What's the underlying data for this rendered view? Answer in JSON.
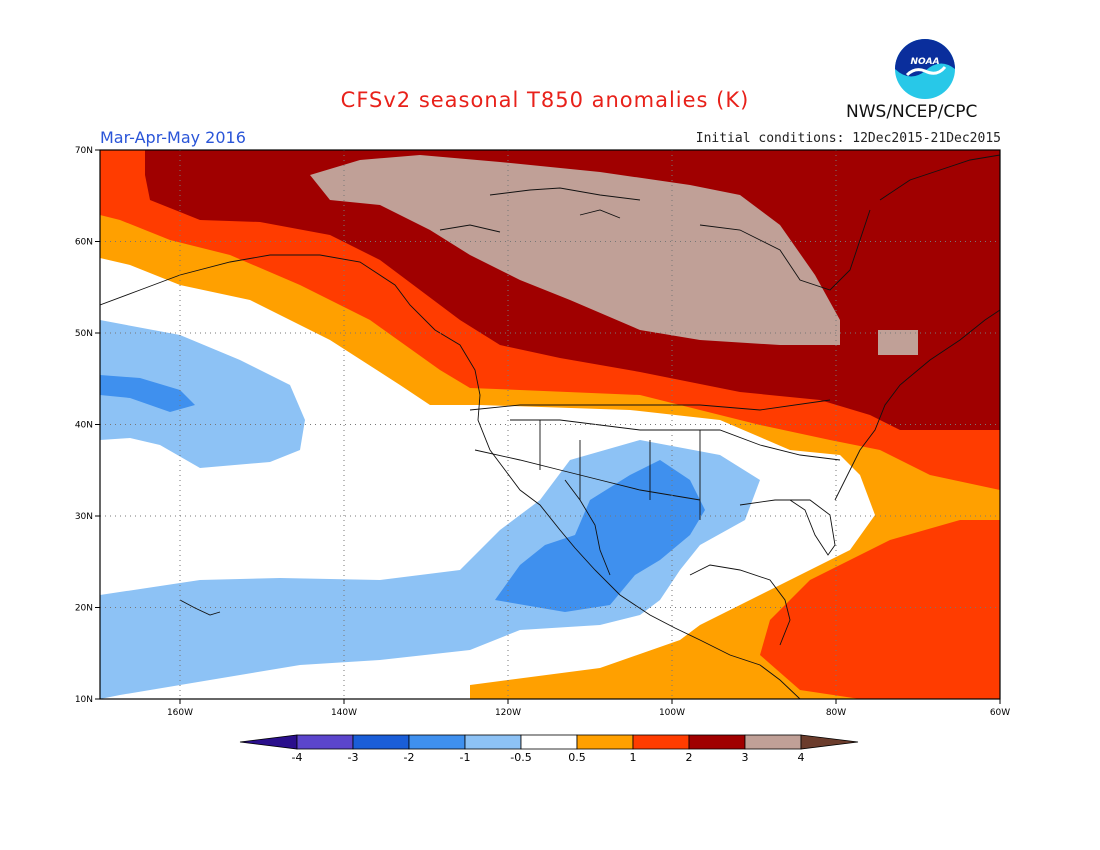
{
  "header": {
    "title": "CFSv2 seasonal T850 anomalies (K)",
    "period": "Mar-Apr-May 2016",
    "initial_conditions": "Initial conditions: 12Dec2015-21Dec2015",
    "agency": "NWS/NCEP/CPC",
    "logo_text": "NOAA"
  },
  "map": {
    "lat_labels": [
      "70N",
      "60N",
      "50N",
      "40N",
      "30N",
      "20N",
      "10N"
    ],
    "lon_labels": [
      "160W",
      "140W",
      "120W",
      "100W",
      "80W",
      "60W"
    ],
    "region": "North America and eastern Pacific"
  },
  "legend": {
    "labels": [
      "-4",
      "-3",
      "-2",
      "-1",
      "-0.5",
      "0.5",
      "1",
      "2",
      "3",
      "4"
    ],
    "colors": [
      "#2a0f8c",
      "#5b45cc",
      "#1a5ed8",
      "#3f90ee",
      "#8dc2f5",
      "#ffffff",
      "#ffa000",
      "#ff3c00",
      "#a00000",
      "#c0a097",
      "#6b3c2c"
    ]
  }
}
